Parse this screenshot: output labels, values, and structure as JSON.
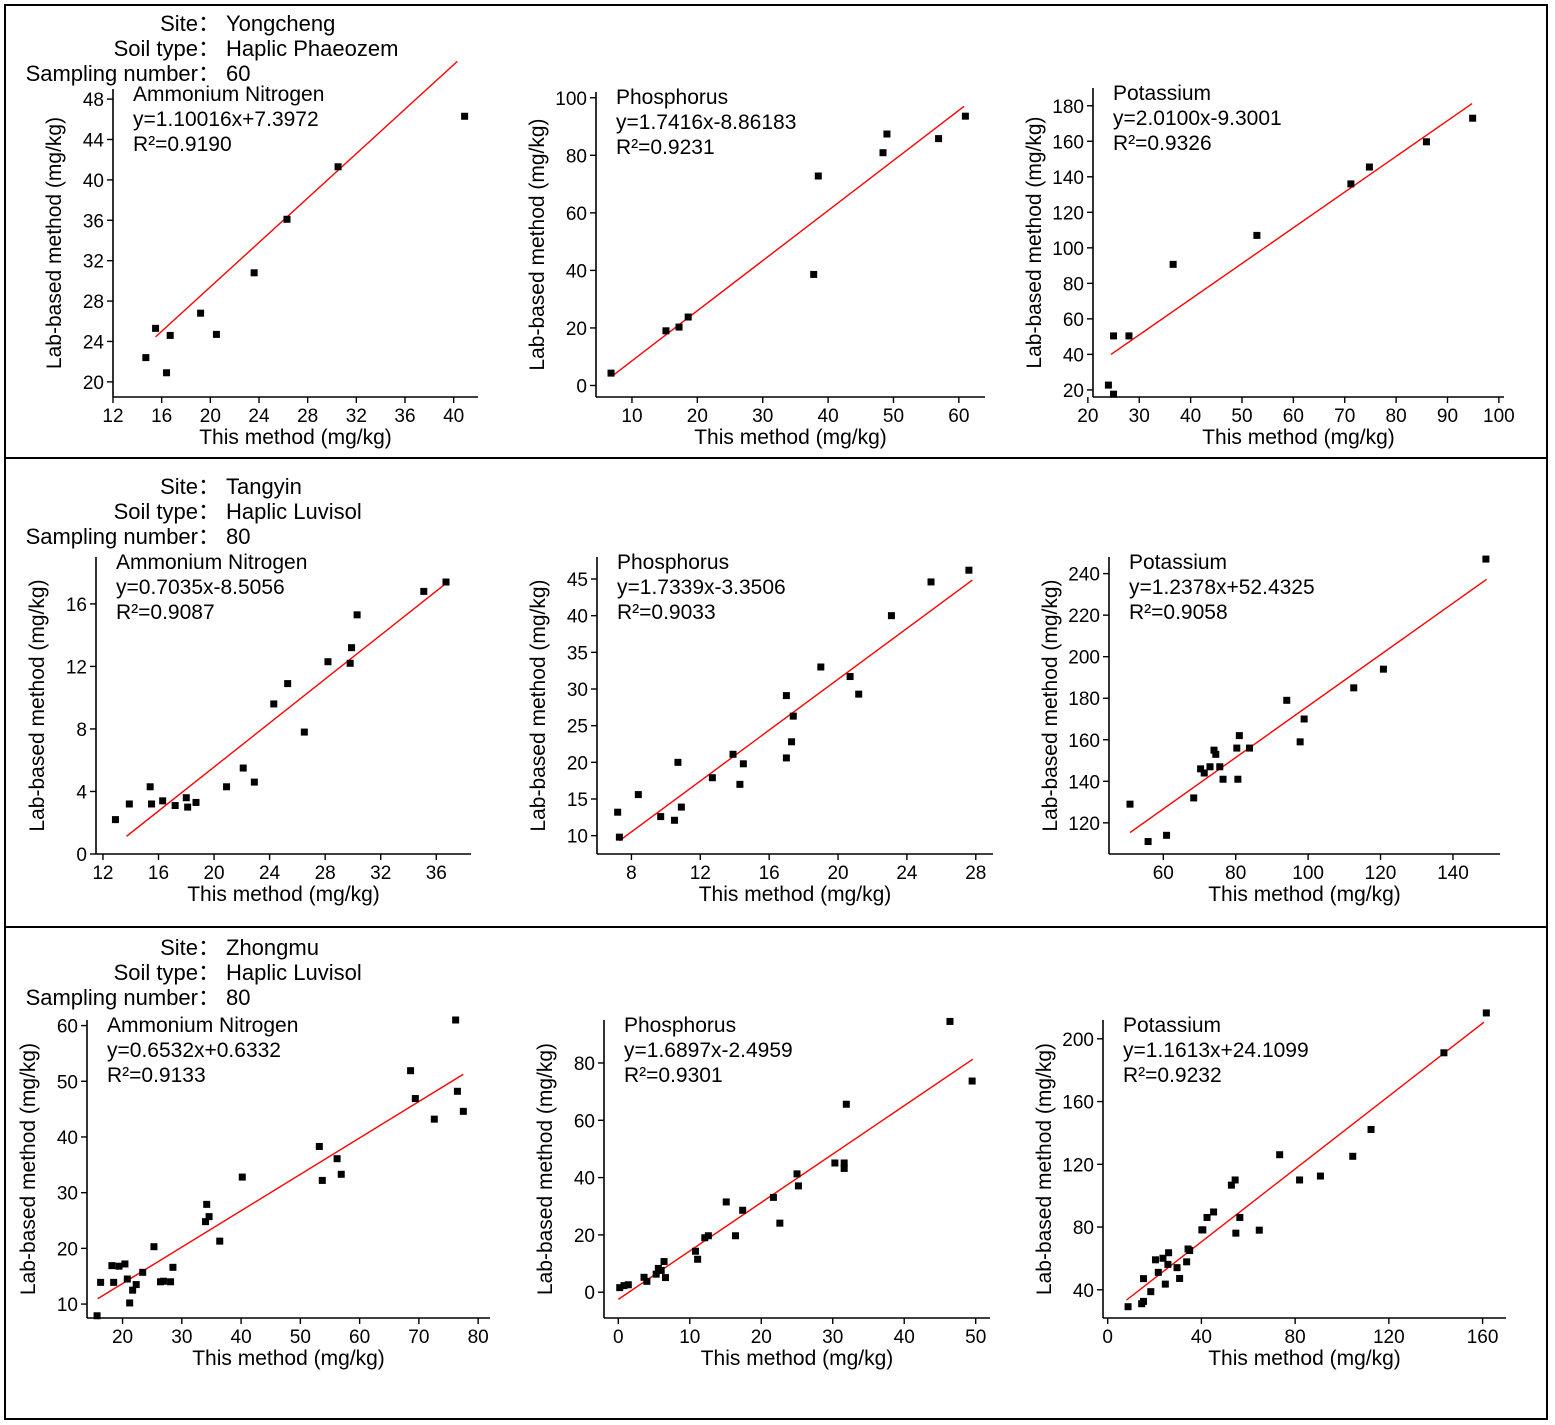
{
  "sections": [
    {
      "site_label": "Site：",
      "site": "Yongcheng",
      "soil_label": "Soil type：",
      "soil": "Haplic Phaeozem",
      "sampling_label": "Sampling number：",
      "sampling": "60"
    },
    {
      "site_label": "Site：",
      "site": "Tangyin",
      "soil_label": "Soil type：",
      "soil": "Haplic Luvisol",
      "sampling_label": "Sampling number：",
      "sampling": "80"
    },
    {
      "site_label": "Site：",
      "site": "Zhongmu",
      "soil_label": "Soil type：",
      "soil": "Haplic Luvisol",
      "sampling_label": "Sampling number：",
      "sampling": "80"
    }
  ],
  "colors": {
    "points": "#000000",
    "fit_line": "#ff0000",
    "axes": "#000000",
    "border": "#000000"
  },
  "chart_data": [
    {
      "type": "scatter",
      "title": "Ammonium Nitrogen",
      "equation": "y=1.10016x+7.3972",
      "r2": "R²=0.9190",
      "xlabel": "This method (mg/kg)",
      "ylabel": "Lab-based method (mg/kg)",
      "xlim": [
        12,
        42
      ],
      "ylim": [
        18.5,
        49
      ],
      "xticks": [
        12,
        16,
        20,
        24,
        28,
        32,
        36,
        40
      ],
      "yticks": [
        20,
        24,
        28,
        32,
        36,
        40,
        44,
        48
      ],
      "fit": {
        "slope": 1.10016,
        "intercept": 7.3972,
        "x_range": [
          15.5,
          40.3
        ]
      },
      "points": [
        [
          14.7,
          22.4
        ],
        [
          15.5,
          25.3
        ],
        [
          16.4,
          20.9
        ],
        [
          16.7,
          24.6
        ],
        [
          19.2,
          26.8
        ],
        [
          20.5,
          24.7
        ],
        [
          23.6,
          30.8
        ],
        [
          26.3,
          36.1
        ],
        [
          30.5,
          41.3
        ],
        [
          40.9,
          46.3
        ]
      ]
    },
    {
      "type": "scatter",
      "title": "Phosphorus",
      "equation": "y=1.7416x-8.86183",
      "r2": "R²=0.9231",
      "xlabel": "This method (mg/kg)",
      "ylabel": "Lab-based method (mg/kg)",
      "xlim": [
        4.5,
        64
      ],
      "ylim": [
        -4,
        102
      ],
      "xticks": [
        10,
        20,
        30,
        40,
        50,
        60
      ],
      "yticks": [
        0,
        20,
        40,
        60,
        80,
        100
      ],
      "fit": {
        "slope": 1.7416,
        "intercept": -8.86183,
        "x_range": [
          7.2,
          60.8
        ]
      },
      "points": [
        [
          6.8,
          4.3
        ],
        [
          15.2,
          19
        ],
        [
          17.2,
          20.3
        ],
        [
          18.6,
          23.8
        ],
        [
          37.8,
          38.6
        ],
        [
          38.5,
          72.8
        ],
        [
          48.4,
          80.9
        ],
        [
          49,
          87.4
        ],
        [
          56.9,
          85.8
        ],
        [
          61,
          93.6
        ]
      ]
    },
    {
      "type": "scatter",
      "title": "Potassium",
      "equation": "y=2.0100x-9.3001",
      "r2": "R²=0.9326",
      "xlabel": "This method (mg/kg)",
      "ylabel": "Lab-based method (mg/kg)",
      "xlim": [
        21,
        101
      ],
      "ylim": [
        16,
        190
      ],
      "xticks": [
        20,
        30,
        40,
        50,
        60,
        70,
        80,
        90,
        100
      ],
      "yticks": [
        20,
        40,
        60,
        80,
        100,
        120,
        140,
        160,
        180
      ],
      "fit": {
        "slope": 2.01,
        "intercept": -9.3001,
        "x_range": [
          24.5,
          94.8
        ]
      },
      "points": [
        [
          24,
          22.7
        ],
        [
          25,
          50.4
        ],
        [
          25,
          17.6
        ],
        [
          28,
          50.4
        ],
        [
          36.6,
          90.7
        ],
        [
          52.9,
          107
        ],
        [
          71.2,
          136
        ],
        [
          74.8,
          145.5
        ],
        [
          85.9,
          159.7
        ],
        [
          94.9,
          173
        ]
      ]
    },
    {
      "type": "scatter",
      "title": "Ammonium Nitrogen",
      "equation": "y=0.7035x-8.5056",
      "r2": "R²=0.9087",
      "xlabel": "This method (mg/kg)",
      "ylabel": "Lab-based method (mg/kg)",
      "xlim": [
        11.5,
        38.5
      ],
      "ylim": [
        0,
        19
      ],
      "xticks": [
        12,
        16,
        20,
        24,
        28,
        32,
        36
      ],
      "yticks": [
        0,
        4,
        8,
        12,
        16
      ],
      "fit": {
        "slope": 0.7035,
        "intercept": -8.5056,
        "x_range": [
          13.7,
          36.8
        ]
      },
      "points": [
        [
          12.9,
          2.2
        ],
        [
          13.9,
          3.2
        ],
        [
          15.4,
          4.3
        ],
        [
          15.5,
          3.2
        ],
        [
          16.3,
          3.4
        ],
        [
          17.2,
          3.1
        ],
        [
          18,
          3.6
        ],
        [
          18.1,
          3.0
        ],
        [
          18.7,
          3.3
        ],
        [
          20.9,
          4.3
        ],
        [
          22.1,
          5.5
        ],
        [
          22.9,
          4.6
        ],
        [
          24.3,
          9.6
        ],
        [
          25.3,
          10.9
        ],
        [
          26.5,
          7.8
        ],
        [
          28.2,
          12.3
        ],
        [
          29.8,
          12.2
        ],
        [
          29.9,
          13.2
        ],
        [
          30.3,
          15.3
        ],
        [
          35.1,
          16.8
        ],
        [
          36.7,
          17.4
        ]
      ]
    },
    {
      "type": "scatter",
      "title": "Phosphorus",
      "equation": "y=1.7339x-3.3506",
      "r2": "R²=0.9033",
      "xlabel": "This method (mg/kg)",
      "ylabel": "Lab-based method (mg/kg)",
      "xlim": [
        6,
        29
      ],
      "ylim": [
        7.5,
        48
      ],
      "xticks": [
        8,
        12,
        16,
        20,
        24,
        28
      ],
      "yticks": [
        10,
        15,
        20,
        25,
        30,
        35,
        40,
        45
      ],
      "fit": {
        "slope": 1.7339,
        "intercept": -3.3506,
        "x_range": [
          7.3,
          27.8
        ]
      },
      "points": [
        [
          7.2,
          13.2
        ],
        [
          7.3,
          9.8
        ],
        [
          8.4,
          15.6
        ],
        [
          9.7,
          12.6
        ],
        [
          10.5,
          12.1
        ],
        [
          10.7,
          20
        ],
        [
          10.9,
          13.9
        ],
        [
          12.7,
          17.9
        ],
        [
          13.9,
          21.1
        ],
        [
          14.3,
          17
        ],
        [
          14.5,
          19.8
        ],
        [
          17.0,
          29.1
        ],
        [
          17.0,
          20.6
        ],
        [
          17.3,
          22.8
        ],
        [
          17.4,
          26.3
        ],
        [
          19.0,
          33
        ],
        [
          20.7,
          31.7
        ],
        [
          21.2,
          29.3
        ],
        [
          23.1,
          40
        ],
        [
          25.4,
          44.6
        ],
        [
          27.6,
          46.2
        ]
      ]
    },
    {
      "type": "scatter",
      "title": "Potassium",
      "equation": "y=1.2378x+52.4325",
      "r2": "R²=0.9058",
      "xlabel": "This method (mg/kg)",
      "ylabel": "Lab-based method (mg/kg)",
      "xlim": [
        45,
        153
      ],
      "ylim": [
        105,
        248
      ],
      "xticks": [
        60,
        80,
        100,
        120,
        140
      ],
      "yticks": [
        120,
        140,
        160,
        180,
        200,
        220,
        240
      ],
      "fit": {
        "slope": 1.2378,
        "intercept": 52.4325,
        "x_range": [
          50.8,
          149.3
        ]
      },
      "points": [
        [
          50.8,
          129
        ],
        [
          55.8,
          111
        ],
        [
          60.9,
          114
        ],
        [
          68.4,
          132
        ],
        [
          70.3,
          146
        ],
        [
          71.3,
          144
        ],
        [
          72.9,
          147
        ],
        [
          74,
          155
        ],
        [
          74.5,
          153
        ],
        [
          75.6,
          147
        ],
        [
          76.5,
          141
        ],
        [
          80.3,
          156
        ],
        [
          80.6,
          141
        ],
        [
          81,
          162
        ],
        [
          83.8,
          156
        ],
        [
          94.1,
          179
        ],
        [
          97.8,
          159
        ],
        [
          98.9,
          170
        ],
        [
          112.6,
          185
        ],
        [
          120.8,
          194
        ],
        [
          149.1,
          247
        ]
      ]
    },
    {
      "type": "scatter",
      "title": "Ammonium Nitrogen",
      "equation": "y=0.6532x+0.6332",
      "r2": "R²=0.9133",
      "xlabel": "This method (mg/kg)",
      "ylabel": "Lab-based method (mg/kg)",
      "xlim": [
        14,
        82
      ],
      "ylim": [
        7.5,
        61
      ],
      "xticks": [
        20,
        30,
        40,
        50,
        60,
        70,
        80
      ],
      "yticks": [
        10,
        20,
        30,
        40,
        50,
        60
      ],
      "fit": {
        "slope": 0.6532,
        "intercept": 0.6332,
        "x_range": [
          15.8,
          77.5
        ]
      },
      "points": [
        [
          15.7,
          7.9
        ],
        [
          16.3,
          13.9
        ],
        [
          18.2,
          16.9
        ],
        [
          18.5,
          13.9
        ],
        [
          19.4,
          16.8
        ],
        [
          20.4,
          17.2
        ],
        [
          20.8,
          14.5
        ],
        [
          21.2,
          10.2
        ],
        [
          21.7,
          12.5
        ],
        [
          22.3,
          13.5
        ],
        [
          23.4,
          15.7
        ],
        [
          25.3,
          20.3
        ],
        [
          26.4,
          14
        ],
        [
          26.9,
          14.1
        ],
        [
          28.1,
          14
        ],
        [
          28.5,
          16.6
        ],
        [
          34.0,
          24.8
        ],
        [
          34.2,
          27.9
        ],
        [
          34.6,
          25.7
        ],
        [
          36.4,
          21.3
        ],
        [
          40.2,
          32.8
        ],
        [
          53.2,
          38.3
        ],
        [
          53.7,
          32.2
        ],
        [
          56.2,
          36.1
        ],
        [
          56.9,
          33.3
        ],
        [
          68.6,
          51.9
        ],
        [
          69.4,
          46.9
        ],
        [
          72.6,
          43.2
        ],
        [
          76.2,
          61
        ],
        [
          76.5,
          48.2
        ],
        [
          77.5,
          44.6
        ]
      ]
    },
    {
      "type": "scatter",
      "title": "Phosphorus",
      "equation": "y=1.6897x-2.4959",
      "r2": "R²=0.9301",
      "xlabel": "This method (mg/kg)",
      "ylabel": "Lab-based method (mg/kg)",
      "xlim": [
        -2,
        52
      ],
      "ylim": [
        -9,
        95
      ],
      "xticks": [
        0,
        10,
        20,
        30,
        40,
        50
      ],
      "yticks": [
        0,
        20,
        40,
        60,
        80
      ],
      "fit": {
        "slope": 1.6897,
        "intercept": -2.4959,
        "x_range": [
          0,
          49.6
        ]
      },
      "points": [
        [
          0.2,
          1.6
        ],
        [
          0.8,
          2.3
        ],
        [
          1.4,
          2.6
        ],
        [
          3.6,
          5.2
        ],
        [
          4,
          3.8
        ],
        [
          5.3,
          6.3
        ],
        [
          5.6,
          8.3
        ],
        [
          6,
          7.6
        ],
        [
          6.4,
          10.7
        ],
        [
          6.6,
          5.1
        ],
        [
          10.8,
          14.3
        ],
        [
          11.1,
          11.5
        ],
        [
          12.1,
          19
        ],
        [
          12.6,
          19.7
        ],
        [
          15.1,
          31.5
        ],
        [
          16.4,
          19.7
        ],
        [
          17.4,
          28.6
        ],
        [
          21.7,
          33.1
        ],
        [
          22.6,
          24.1
        ],
        [
          25,
          41.3
        ],
        [
          25.2,
          37.1
        ],
        [
          30.3,
          45.1
        ],
        [
          31.6,
          45.1
        ],
        [
          31.6,
          43.2
        ],
        [
          31.9,
          65.6
        ],
        [
          46.4,
          94.5
        ],
        [
          49.5,
          73.7
        ]
      ]
    },
    {
      "type": "scatter",
      "title": "Potassium",
      "equation": "y=1.1613x+24.1099",
      "r2": "R²=0.9232",
      "xlabel": "This method (mg/kg)",
      "ylabel": "Lab-based method (mg/kg)",
      "xlim": [
        -2,
        170
      ],
      "ylim": [
        22,
        212
      ],
      "xticks": [
        0,
        40,
        80,
        120,
        160
      ],
      "yticks": [
        40,
        80,
        120,
        160,
        200
      ],
      "fit": {
        "slope": 1.1613,
        "intercept": 24.1099,
        "x_range": [
          8,
          160.6
        ]
      },
      "points": [
        [
          8.7,
          29.2
        ],
        [
          14.5,
          31.1
        ],
        [
          15.3,
          32.6
        ],
        [
          15.3,
          47.1
        ],
        [
          18.4,
          38.8
        ],
        [
          20.4,
          59.1
        ],
        [
          21.6,
          51.1
        ],
        [
          23.6,
          60.1
        ],
        [
          24.6,
          43.6
        ],
        [
          26,
          63.6
        ],
        [
          25.7,
          56.2
        ],
        [
          29.6,
          54.1
        ],
        [
          30.7,
          47.2
        ],
        [
          33.7,
          57.8
        ],
        [
          34.3,
          66
        ],
        [
          35,
          65
        ],
        [
          40.2,
          78.2
        ],
        [
          40.6,
          78.2
        ],
        [
          42.4,
          86.1
        ],
        [
          45.2,
          89.6
        ],
        [
          52.8,
          106.7
        ],
        [
          54.4,
          110
        ],
        [
          54.7,
          76.1
        ],
        [
          56.4,
          86.1
        ],
        [
          64.7,
          78
        ],
        [
          73.4,
          126.1
        ],
        [
          81.9,
          110
        ],
        [
          90.8,
          112.5
        ],
        [
          104.6,
          125.1
        ],
        [
          112.4,
          142.2
        ],
        [
          143.5,
          191.1
        ],
        [
          161.6,
          216.5
        ]
      ]
    }
  ]
}
